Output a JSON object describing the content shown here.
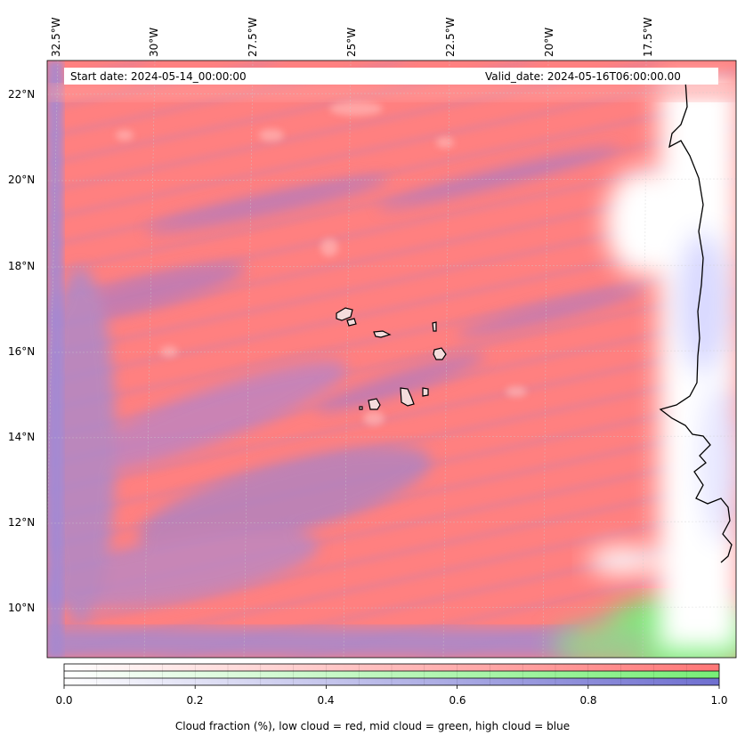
{
  "map": {
    "lon_ticks": [
      "32.5°W",
      "30°W",
      "27.5°W",
      "25°W",
      "22.5°W",
      "20°W",
      "17.5°W"
    ],
    "lat_ticks": [
      "22°N",
      "20°N",
      "18°N",
      "16°N",
      "14°N",
      "12°N",
      "10°N"
    ],
    "start_date": "Start date: 2024-05-14_00:00:00",
    "valid_date": "Valid_date: 2024-05-16T06:00:00.00"
  },
  "colorbar": {
    "ticks": [
      "0.0",
      "0.2",
      "0.4",
      "0.6",
      "0.8",
      "1.0"
    ],
    "caption": "Cloud fraction (%), low cloud = red, mid cloud = green, high cloud = blue",
    "colors": {
      "low": "#ff7777",
      "mid": "#77ee77",
      "high": "#6f6fd0"
    }
  }
}
